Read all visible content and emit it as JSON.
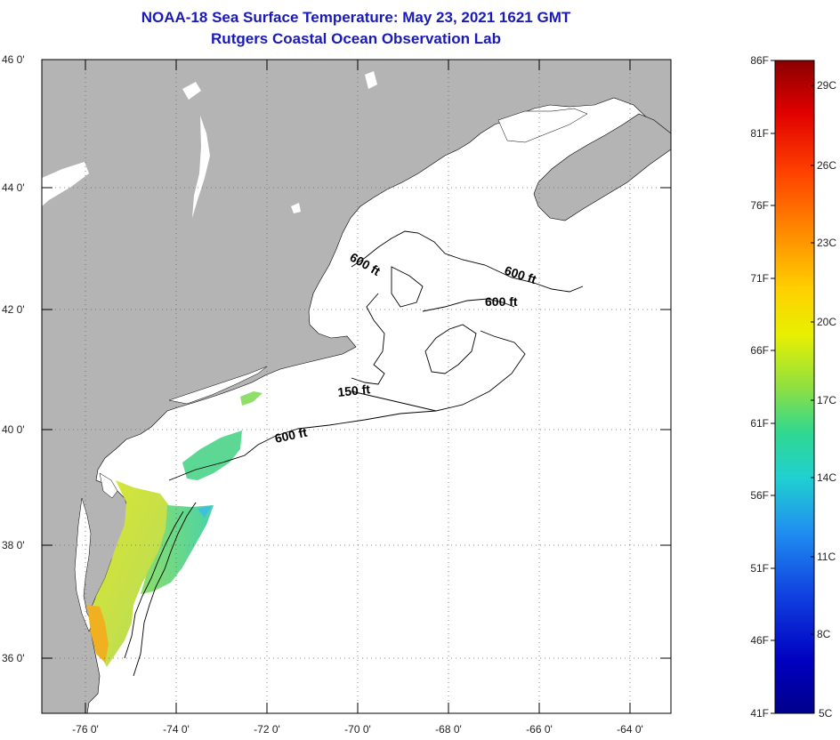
{
  "title": "NOAA-18 Sea Surface Temperature:  May 23, 2021 1621 GMT",
  "subtitle": "Rutgers Coastal Ocean Observation Lab",
  "map": {
    "lon_range": [
      -77,
      -63
    ],
    "lat_range": [
      35,
      46
    ],
    "lon_ticks": [
      "-76 0'",
      "-74 0'",
      "-72 0'",
      "-70 0'",
      "-68 0'",
      "-66 0'",
      "-64 0'"
    ],
    "lat_ticks": [
      "46 0'",
      "44 0'",
      "42 0'",
      "40 0'",
      "38 0'",
      "36 0'"
    ],
    "contour_labels": [
      "600 ft",
      "600 ft",
      "600 ft",
      "150 ft",
      "600 ft"
    ],
    "land_color": "#b4b4b4",
    "ocean_color": "#ffffff",
    "grid": "dotted"
  },
  "colorbar": {
    "fahrenheit_labels": [
      "86F",
      "81F",
      "76F",
      "71F",
      "66F",
      "61F",
      "56F",
      "51F",
      "46F",
      "41F"
    ],
    "celsius_labels": [
      "29C",
      "26C",
      "23C",
      "20C",
      "17C",
      "14C",
      "11C",
      "8C",
      "5C"
    ],
    "colors": [
      "#8b0000",
      "#e00000",
      "#ff4000",
      "#ff9000",
      "#ffd000",
      "#e8f000",
      "#90e040",
      "#30d890",
      "#20d0d0",
      "#2090f0",
      "#1040e0",
      "#0000c0",
      "#00008b"
    ]
  }
}
